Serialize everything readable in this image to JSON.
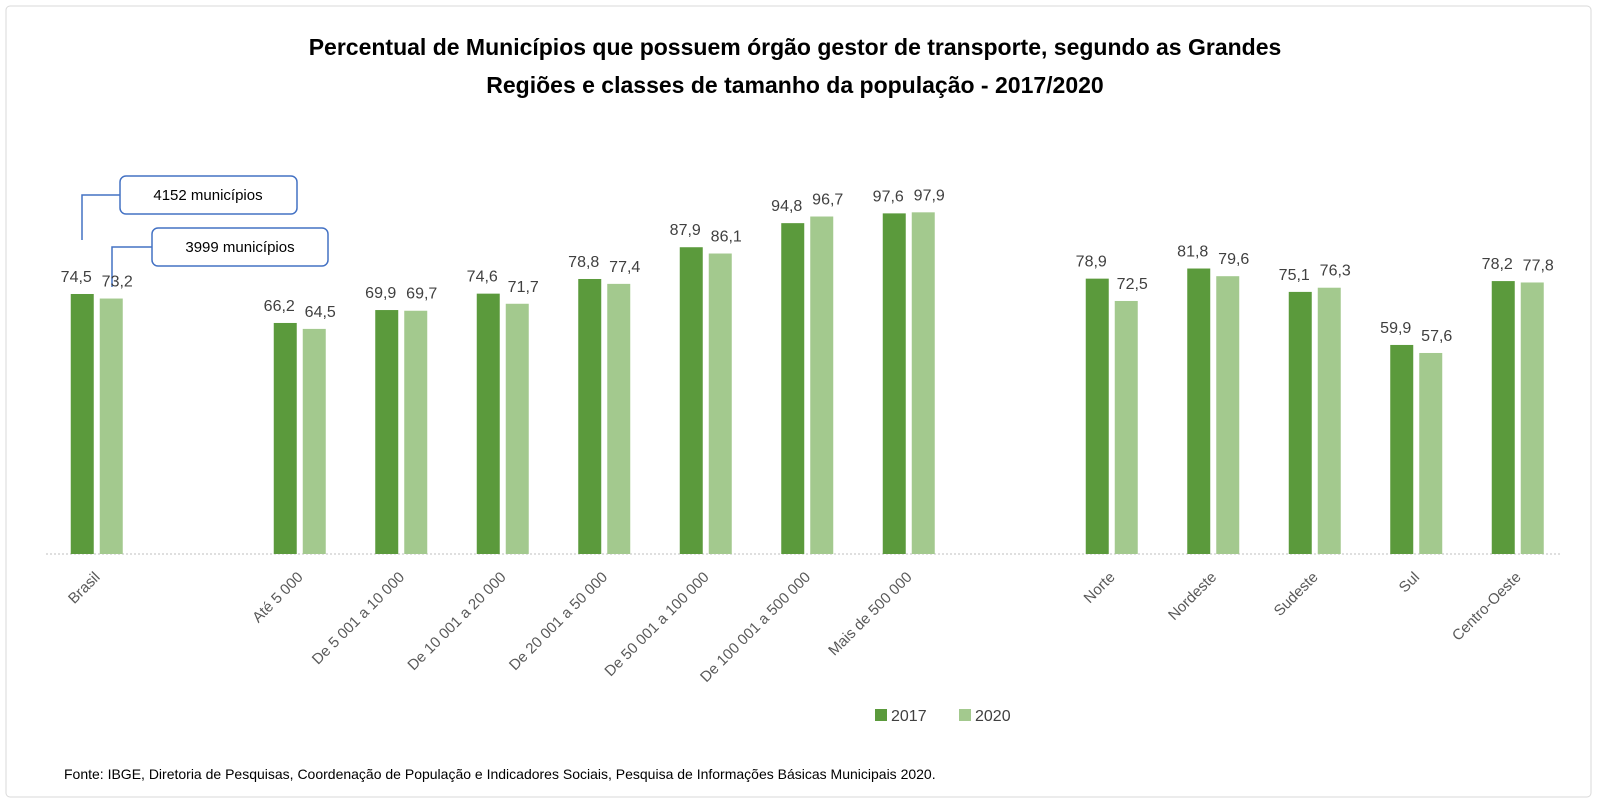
{
  "chart_data": {
    "type": "bar",
    "title": "Percentual de Municípios que possuem órgão gestor de transporte, segundo as Grandes",
    "title_line2": "Regiões e classes de tamanho da população - 2017/2020",
    "categories": [
      "Brasil",
      null,
      "Até 5 000",
      "De 5 001 a 10 000",
      "De 10 001 a 20 000",
      "De 20 001 a 50 000",
      "De 50 001 a 100 000",
      "De 100 001 a 500 000",
      "Mais de 500 000",
      null,
      "Norte",
      "Nordeste",
      "Sudeste",
      "Sul",
      "Centro-Oeste"
    ],
    "series": [
      {
        "name": "2017",
        "color": "#5b9a3c",
        "values": [
          74.5,
          null,
          66.2,
          69.9,
          74.6,
          78.8,
          87.9,
          94.8,
          97.6,
          null,
          78.9,
          81.8,
          75.1,
          59.9,
          78.2
        ],
        "value_labels": [
          "74,5",
          null,
          "66,2",
          "69,9",
          "74,6",
          "78,8",
          "87,9",
          "94,8",
          "97,6",
          null,
          "78,9",
          "81,8",
          "75,1",
          "59,9",
          "78,2"
        ]
      },
      {
        "name": "2020",
        "color": "#a3c98e",
        "values": [
          73.2,
          null,
          64.5,
          69.7,
          71.7,
          77.4,
          86.1,
          96.7,
          97.9,
          null,
          72.5,
          79.6,
          76.3,
          57.6,
          77.8
        ],
        "value_labels": [
          "73,2",
          null,
          "64,5",
          "69,7",
          "71,7",
          "77,4",
          "86,1",
          "96,7",
          "97,9",
          null,
          "72,5",
          "79,6",
          "76,3",
          "57,6",
          "77,8"
        ]
      }
    ],
    "ylim": [
      0,
      100
    ],
    "legend": "bottom",
    "annotations": [
      "4152 municípios",
      "3999 municípios"
    ],
    "source": "Fonte:  IBGE, Diretoria de Pesquisas, Coordenação de População e Indicadores Sociais, Pesquisa de Informações Básicas Municipais 2020."
  }
}
